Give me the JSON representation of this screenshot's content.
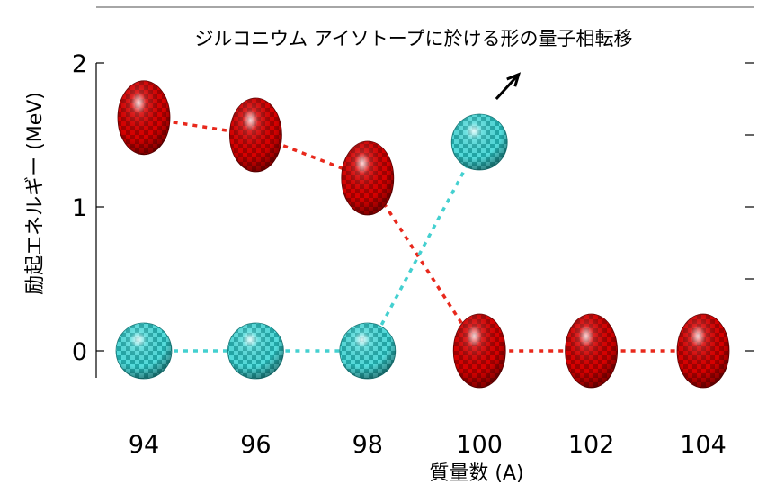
{
  "chart_data": {
    "type": "scatter",
    "title": "ジルコニウム アイソトープに於ける形の量子相転移",
    "xlabel": "質量数 (A)",
    "ylabel": "励起エネルギー (MeV)",
    "xlim": [
      93,
      105
    ],
    "ylim": [
      -0.2,
      2.15
    ],
    "x_ticks": [
      94,
      96,
      98,
      100,
      102,
      104
    ],
    "y_ticks": [
      0,
      1,
      2
    ],
    "grid": false,
    "series": [
      {
        "shape": "prolate",
        "color": "#c00000",
        "x": [
          94,
          96,
          98,
          100,
          102,
          104
        ],
        "y": [
          1.62,
          1.5,
          1.2,
          0.0,
          0.0,
          0.0
        ]
      },
      {
        "shape": "spherical",
        "color": "#3cc8c8",
        "x": [
          94,
          96,
          98,
          100
        ],
        "y": [
          0.0,
          0.0,
          0.0,
          1.45
        ]
      }
    ],
    "annotations": [
      {
        "type": "arrow",
        "from": [
          100.3,
          1.75
        ],
        "to": [
          100.7,
          1.92
        ]
      }
    ]
  }
}
